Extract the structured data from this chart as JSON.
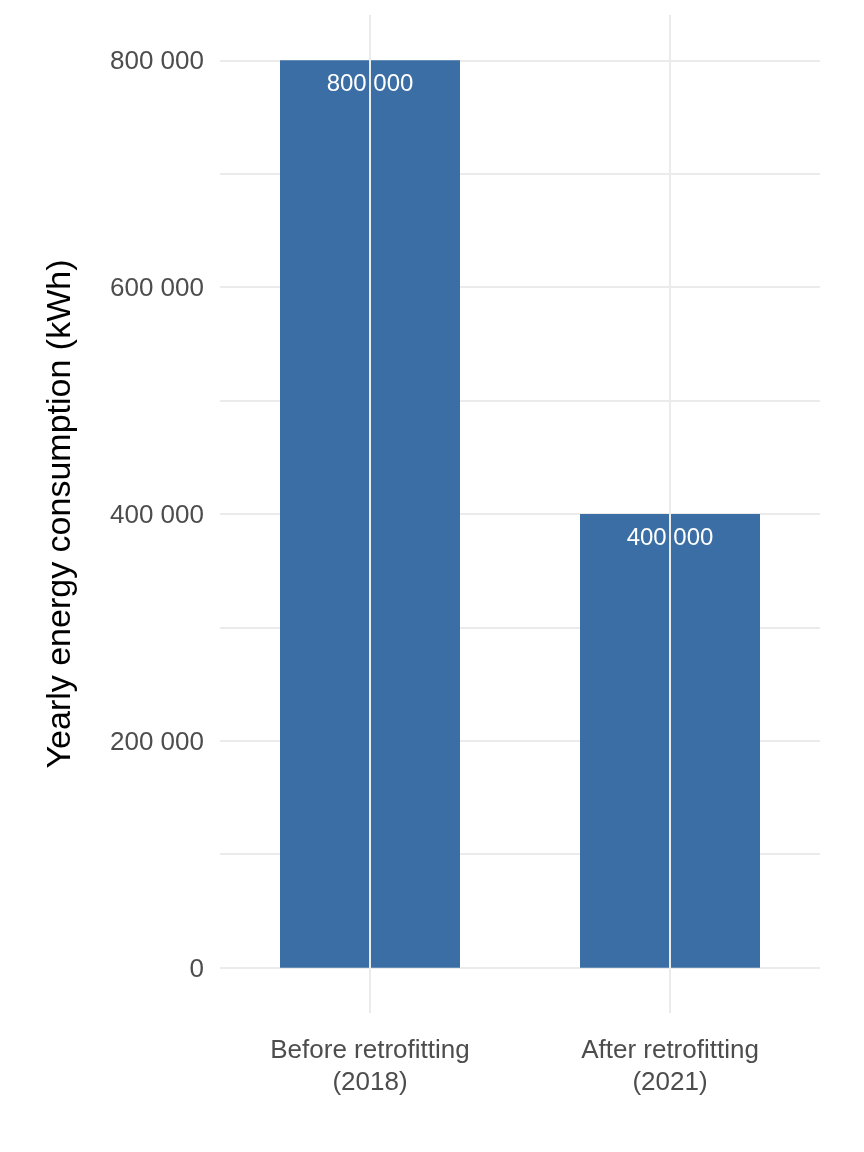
{
  "chart_data": {
    "type": "bar",
    "ylabel": "Yearly energy consumption (kWh)",
    "categories": [
      "Before retrofitting\n(2018)",
      "After retrofitting\n(2021)"
    ],
    "values": [
      800000,
      400000
    ],
    "value_labels": [
      "800 000",
      "400 000"
    ],
    "color": "#3a6ea5",
    "ylim": [
      -40000,
      840000
    ],
    "yticks": [
      {
        "value": 0,
        "label": "0"
      },
      {
        "value": 100000,
        "label": null
      },
      {
        "value": 200000,
        "label": "200 000"
      },
      {
        "value": 300000,
        "label": null
      },
      {
        "value": 400000,
        "label": "400 000"
      },
      {
        "value": 500000,
        "label": null
      },
      {
        "value": 600000,
        "label": "600 000"
      },
      {
        "value": 700000,
        "label": null
      },
      {
        "value": 800000,
        "label": "800 000"
      }
    ],
    "grid": true
  }
}
